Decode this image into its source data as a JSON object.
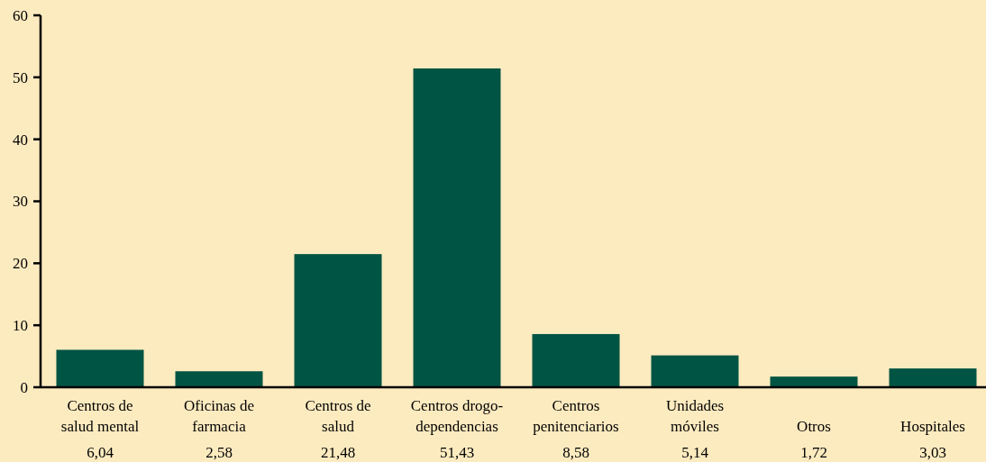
{
  "chart_data": {
    "type": "bar",
    "categories": [
      "Centros de\nsalud mental",
      "Oficinas de\nfarmacia",
      "Centros de\nsalud",
      "Centros drogo-\ndependencias",
      "Centros\npenitenciarios",
      "Unidades\nmóviles",
      "Otros",
      "Hospitales"
    ],
    "values": [
      6.04,
      2.58,
      21.48,
      51.43,
      8.58,
      5.14,
      1.72,
      3.03
    ],
    "value_labels": [
      "6,04",
      "2,58",
      "21,48",
      "51,43",
      "8,58",
      "5,14",
      "1,72",
      "3,03"
    ],
    "color": "#005443",
    "ylim": [
      0,
      60
    ],
    "yticks": [
      0,
      10,
      20,
      30,
      40,
      50,
      60
    ],
    "grid": false
  }
}
